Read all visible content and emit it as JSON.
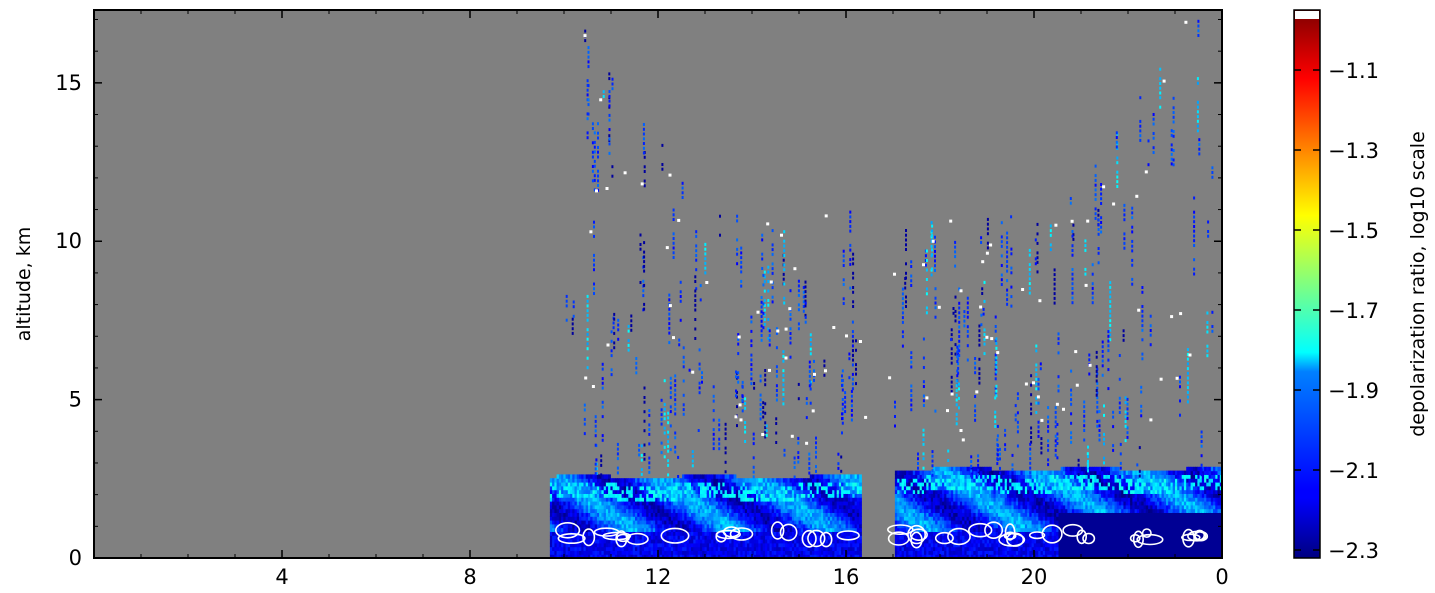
{
  "chart_data": {
    "type": "heatmap",
    "title": "",
    "xlabel": "",
    "ylabel": "altitude, km",
    "xlim": [
      0,
      24
    ],
    "ylim": [
      0,
      17.3
    ],
    "x_ticks": [
      4,
      8,
      12,
      16,
      20,
      0
    ],
    "y_ticks": [
      0,
      5,
      10,
      15
    ],
    "background_color": "#808080",
    "data_start_x": 9.7,
    "data_gap": [
      16.3,
      17.0
    ],
    "boundary_layer_top_km": 2.5,
    "colorbar": {
      "label": "depolarization ratio, log10 scale",
      "ticks": [
        -1.1,
        -1.3,
        -1.5,
        -1.7,
        -1.9,
        -2.1,
        -2.3
      ],
      "tick_labels": [
        "−1.1",
        "−1.3",
        "−1.5",
        "−1.7",
        "−1.9",
        "−2.1",
        "−2.3"
      ],
      "range": [
        -2.32,
        -0.95
      ],
      "colormap": "jet"
    },
    "contour_color": "#ffffff"
  }
}
